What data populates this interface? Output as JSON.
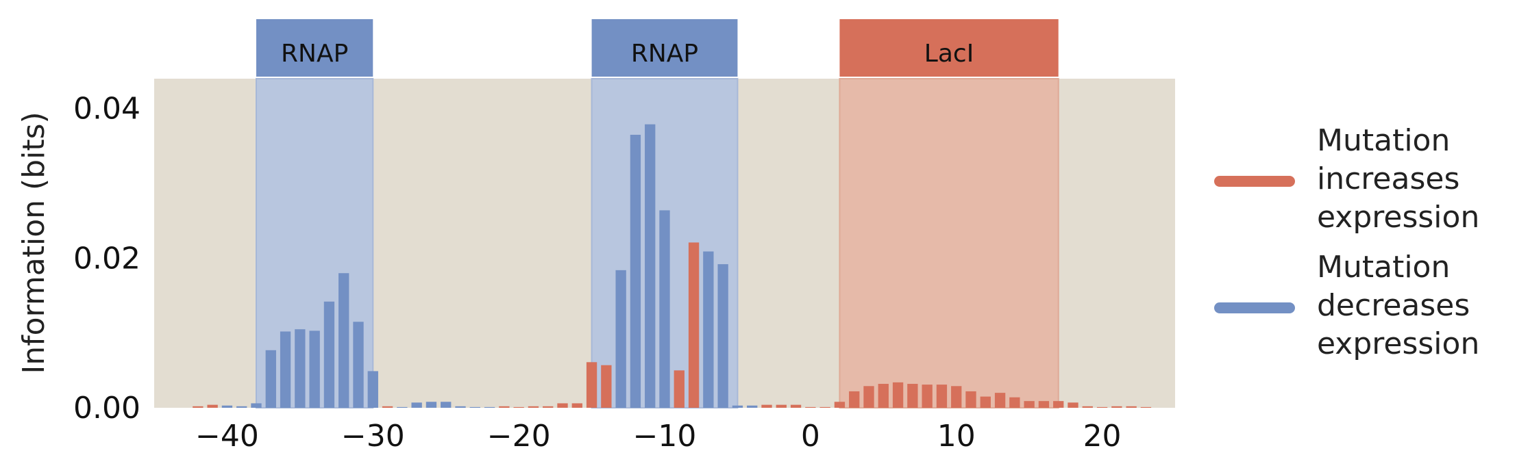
{
  "chart_data": {
    "type": "bar",
    "ylabel": "Information (bits)",
    "xlim": [
      -45,
      25
    ],
    "ylim": [
      0,
      0.044
    ],
    "x_ticks": [
      "−40",
      "−30",
      "−20",
      "−10",
      "0",
      "10",
      "20"
    ],
    "x_tick_values": [
      -40,
      -30,
      -20,
      -10,
      0,
      10,
      20
    ],
    "y_ticks": [
      "0.00",
      "0.02",
      "0.04"
    ],
    "y_tick_values": [
      0,
      0.02,
      0.04
    ],
    "grid": false,
    "legend_position": "right",
    "colors": {
      "increases": "#d6705a",
      "decreases": "#7390c4",
      "background": "#e3ddd1",
      "rnap_region": "#b8c6df",
      "laci_region": "#e6baa9"
    },
    "regions": [
      {
        "label": "RNAP",
        "start": -38,
        "end": -30,
        "type": "decreases"
      },
      {
        "label": "RNAP",
        "start": -15,
        "end": -5,
        "type": "decreases"
      },
      {
        "label": "LacI",
        "start": 2,
        "end": 17,
        "type": "increases"
      }
    ],
    "series": [
      {
        "name": "Mutation increases expression",
        "key": "increases"
      },
      {
        "name": "Mutation decreases expression",
        "key": "decreases"
      }
    ],
    "positions": [
      -42,
      -41,
      -40,
      -39,
      -38,
      -37,
      -36,
      -35,
      -34,
      -33,
      -32,
      -31,
      -30,
      -29,
      -28,
      -27,
      -26,
      -25,
      -24,
      -23,
      -22,
      -21,
      -20,
      -19,
      -18,
      -17,
      -16,
      -15,
      -14,
      -13,
      -12,
      -11,
      -10,
      -9,
      -8,
      -7,
      -6,
      -5,
      -4,
      -3,
      -2,
      -1,
      0,
      1,
      2,
      3,
      4,
      5,
      6,
      7,
      8,
      9,
      10,
      11,
      12,
      13,
      14,
      15,
      16,
      17,
      18,
      19,
      20,
      21,
      22,
      23
    ],
    "values": [
      0.0002,
      0.0004,
      0.0003,
      0.0002,
      0.0006,
      0.0077,
      0.0102,
      0.0105,
      0.0103,
      0.0142,
      0.018,
      0.0115,
      0.0049,
      0.0002,
      0.0001,
      0.0007,
      0.0008,
      0.0008,
      0.0002,
      0.0001,
      0.0001,
      0.0002,
      0.0001,
      0.0002,
      0.0002,
      0.0006,
      0.0006,
      0.0061,
      0.0057,
      0.0184,
      0.0365,
      0.0379,
      0.0264,
      0.005,
      0.0221,
      0.0209,
      0.0192,
      0.0003,
      0.0003,
      0.0004,
      0.0004,
      0.0004,
      0.0001,
      0.0001,
      0.0008,
      0.0022,
      0.0029,
      0.0032,
      0.0034,
      0.0032,
      0.0031,
      0.0031,
      0.0029,
      0.0022,
      0.0015,
      0.002,
      0.0014,
      0.0009,
      0.0009,
      0.0009,
      0.0007,
      0.0002,
      0.0001,
      0.0002,
      0.0002,
      0.0001
    ],
    "effect": [
      "increases",
      "increases",
      "decreases",
      "decreases",
      "decreases",
      "decreases",
      "decreases",
      "decreases",
      "decreases",
      "decreases",
      "decreases",
      "decreases",
      "decreases",
      "increases",
      "decreases",
      "decreases",
      "decreases",
      "decreases",
      "decreases",
      "decreases",
      "decreases",
      "increases",
      "increases",
      "increases",
      "increases",
      "increases",
      "increases",
      "increases",
      "increases",
      "decreases",
      "decreases",
      "decreases",
      "decreases",
      "increases",
      "increases",
      "decreases",
      "decreases",
      "decreases",
      "decreases",
      "increases",
      "increases",
      "increases",
      "increases",
      "increases",
      "increases",
      "increases",
      "increases",
      "increases",
      "increases",
      "increases",
      "increases",
      "increases",
      "increases",
      "increases",
      "increases",
      "increases",
      "increases",
      "increases",
      "increases",
      "increases",
      "increases",
      "increases",
      "increases",
      "increases",
      "increases",
      "increases"
    ]
  }
}
